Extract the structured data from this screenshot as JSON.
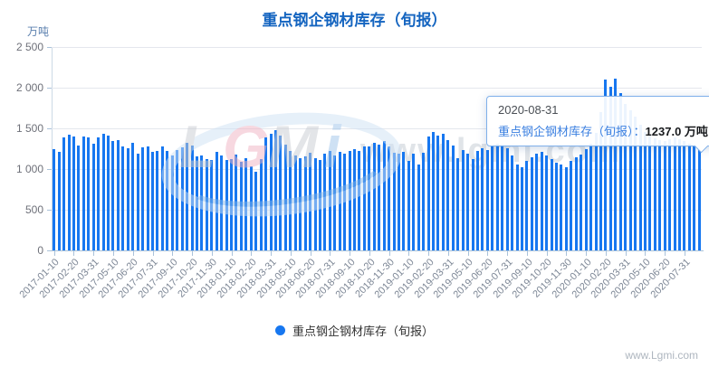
{
  "title": "重点钢企钢材库存（旬报）",
  "y_axis": {
    "name": "万吨",
    "tick_labels": [
      "0",
      "500",
      "1 000",
      "1 500",
      "2 000",
      "2 500"
    ]
  },
  "legend": {
    "label": "重点钢企钢材库存（旬报）"
  },
  "tooltip": {
    "date": "2020-08-31",
    "series": "重点钢企钢材库存（旬报）",
    "separator": "：",
    "value_text": "1237.0 万吨"
  },
  "watermark": {
    "url_text": "www.lgmi.com",
    "logo_letters": [
      {
        "ch": "L",
        "color": "#c9ccd2"
      },
      {
        "ch": "G",
        "color": "#f0b3c2"
      },
      {
        "ch": "M",
        "color": "#c9ccd2"
      },
      {
        "ch": "i",
        "color": "#9ec4ea"
      }
    ]
  },
  "footer": {
    "site_text": "www.Lgmi.com"
  },
  "colors": {
    "bar": "#1777f0",
    "title": "#1565c0",
    "grid": "#e4e7ed",
    "axis": "#aac2da",
    "axis_label": "#6e7079"
  },
  "chart_data": {
    "type": "bar",
    "title": "重点钢企钢材库存（旬报）",
    "ylabel": "万吨",
    "xlabel": "",
    "ylim": [
      0,
      2500
    ],
    "y_interval": 500,
    "grid": true,
    "legend_position": "bottom",
    "x_tick_every": 4,
    "hovered_point": {
      "date": "2020-08-31",
      "value": 1237.0
    },
    "x": [
      "2017-01-10",
      "2017-01-20",
      "2017-01-31",
      "2017-02-10",
      "2017-02-20",
      "2017-02-28",
      "2017-03-10",
      "2017-03-20",
      "2017-03-31",
      "2017-04-10",
      "2017-04-20",
      "2017-04-30",
      "2017-05-10",
      "2017-05-20",
      "2017-05-31",
      "2017-06-10",
      "2017-06-20",
      "2017-06-30",
      "2017-07-10",
      "2017-07-20",
      "2017-07-31",
      "2017-08-10",
      "2017-08-20",
      "2017-08-31",
      "2017-09-10",
      "2017-09-20",
      "2017-09-30",
      "2017-10-10",
      "2017-10-20",
      "2017-10-31",
      "2017-11-10",
      "2017-11-20",
      "2017-11-30",
      "2017-12-10",
      "2017-12-20",
      "2017-12-31",
      "2018-01-10",
      "2018-01-20",
      "2018-01-31",
      "2018-02-10",
      "2018-02-20",
      "2018-02-28",
      "2018-03-10",
      "2018-03-20",
      "2018-03-31",
      "2018-04-10",
      "2018-04-20",
      "2018-04-30",
      "2018-05-10",
      "2018-05-20",
      "2018-05-31",
      "2018-06-10",
      "2018-06-20",
      "2018-06-30",
      "2018-07-10",
      "2018-07-20",
      "2018-07-31",
      "2018-08-10",
      "2018-08-20",
      "2018-08-31",
      "2018-09-10",
      "2018-09-20",
      "2018-09-30",
      "2018-10-10",
      "2018-10-20",
      "2018-10-31",
      "2018-11-10",
      "2018-11-20",
      "2018-11-30",
      "2018-12-10",
      "2018-12-20",
      "2018-12-31",
      "2019-01-10",
      "2019-01-20",
      "2019-01-31",
      "2019-02-10",
      "2019-02-20",
      "2019-02-28",
      "2019-03-10",
      "2019-03-20",
      "2019-03-31",
      "2019-04-10",
      "2019-04-20",
      "2019-04-30",
      "2019-05-10",
      "2019-05-20",
      "2019-05-31",
      "2019-06-10",
      "2019-06-20",
      "2019-06-30",
      "2019-07-10",
      "2019-07-20",
      "2019-07-31",
      "2019-08-10",
      "2019-08-20",
      "2019-08-31",
      "2019-09-10",
      "2019-09-20",
      "2019-09-30",
      "2019-10-10",
      "2019-10-20",
      "2019-10-31",
      "2019-11-10",
      "2019-11-20",
      "2019-11-30",
      "2019-12-10",
      "2019-12-20",
      "2019-12-31",
      "2020-01-10",
      "2020-01-20",
      "2020-01-31",
      "2020-02-10",
      "2020-02-20",
      "2020-02-29",
      "2020-03-10",
      "2020-03-20",
      "2020-03-31",
      "2020-04-10",
      "2020-04-20",
      "2020-04-30",
      "2020-05-10",
      "2020-05-20",
      "2020-05-31",
      "2020-06-10",
      "2020-06-20",
      "2020-06-30",
      "2020-07-10",
      "2020-07-20",
      "2020-07-31",
      "2020-08-10",
      "2020-08-20",
      "2020-08-31"
    ],
    "values": [
      1245,
      1211,
      1394,
      1427,
      1401,
      1291,
      1405,
      1390,
      1310,
      1394,
      1438,
      1412,
      1339,
      1357,
      1280,
      1258,
      1317,
      1189,
      1266,
      1273,
      1211,
      1218,
      1280,
      1218,
      1171,
      1236,
      1262,
      1317,
      1291,
      1152,
      1171,
      1127,
      1108,
      1211,
      1163,
      1116,
      1125,
      1181,
      1090,
      1134,
      1030,
      962,
      1127,
      1390,
      1438,
      1474,
      1412,
      1302,
      1218,
      1171,
      1134,
      1156,
      1200,
      1134,
      1116,
      1189,
      1218,
      1171,
      1207,
      1189,
      1218,
      1244,
      1218,
      1273,
      1280,
      1317,
      1302,
      1346,
      1273,
      1200,
      1189,
      1211,
      1097,
      1189,
      1053,
      1200,
      1401,
      1456,
      1412,
      1438,
      1353,
      1291,
      1134,
      1236,
      1189,
      1127,
      1218,
      1255,
      1236,
      1290,
      1310,
      1295,
      1260,
      1171,
      1053,
      1024,
      1097,
      1150,
      1190,
      1210,
      1170,
      1120,
      1080,
      1060,
      1023,
      1100,
      1140,
      1180,
      1245,
      1310,
      1450,
      1700,
      2095,
      2010,
      2110,
      1935,
      1800,
      1720,
      1640,
      1540,
      1460,
      1410,
      1380,
      1360,
      1345,
      1365,
      1390,
      1370,
      1345,
      1310,
      1280,
      1237
    ]
  }
}
